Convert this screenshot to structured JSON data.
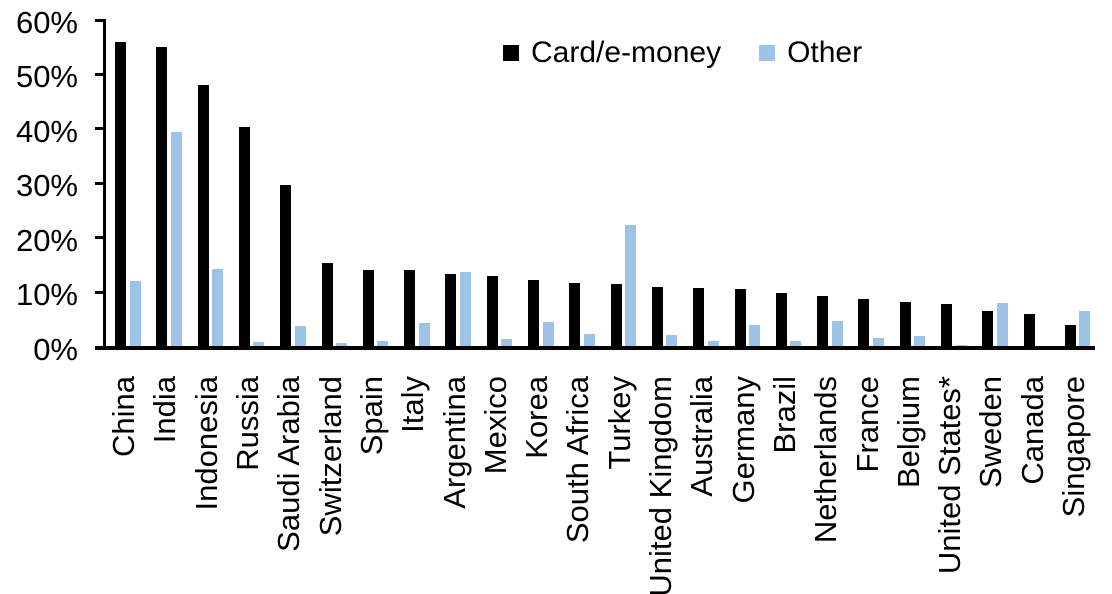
{
  "chart_data": {
    "type": "bar",
    "title": "",
    "categories": [
      "China",
      "India",
      "Indonesia",
      "Russia",
      "Saudi Arabia",
      "Switzerland",
      "Spain",
      "Italy",
      "Argentina",
      "Mexico",
      "Korea",
      "South Africa",
      "Turkey",
      "United Kingdom",
      "Australia",
      "Germany",
      "Brazil",
      "Netherlands",
      "France",
      "Belgium",
      "United States*",
      "Sweden",
      "Canada",
      "Singapore"
    ],
    "series": [
      {
        "name": "Card/e-money",
        "color": "#000000",
        "values": [
          56,
          55,
          48,
          40.4,
          29.6,
          15.3,
          14.1,
          14.0,
          13.3,
          12.9,
          12.2,
          11.6,
          11.5,
          11.0,
          10.7,
          10.5,
          9.9,
          9.2,
          8.7,
          8.2,
          7.9,
          6.5,
          6.0,
          3.9
        ]
      },
      {
        "name": "Other",
        "color": "#9DC3E6",
        "values": [
          12.1,
          39.5,
          14.3,
          0.9,
          3.7,
          0.7,
          1.0,
          4.4,
          13.6,
          1.3,
          4.5,
          2.3,
          22.4,
          2.2,
          1.0,
          3.9,
          1.1,
          4.7,
          1.5,
          2.0,
          0.3,
          8.0,
          0,
          6.6
        ]
      }
    ],
    "y_axis": {
      "unit": "%",
      "min": 0,
      "max": 60,
      "tick_values": [
        0,
        10,
        20,
        30,
        40,
        50,
        60
      ],
      "tick_labels": [
        "0%",
        "10%",
        "20%",
        "30%",
        "40%",
        "50%",
        "60%"
      ]
    },
    "x_axis": {
      "label": "",
      "tick_rotation_degrees": 90
    },
    "legend": {
      "position": "top-center",
      "items": [
        "Card/e-money",
        "Other"
      ]
    },
    "grid": false,
    "background_color": "#FFFFFF",
    "axis_color": "#000000"
  }
}
